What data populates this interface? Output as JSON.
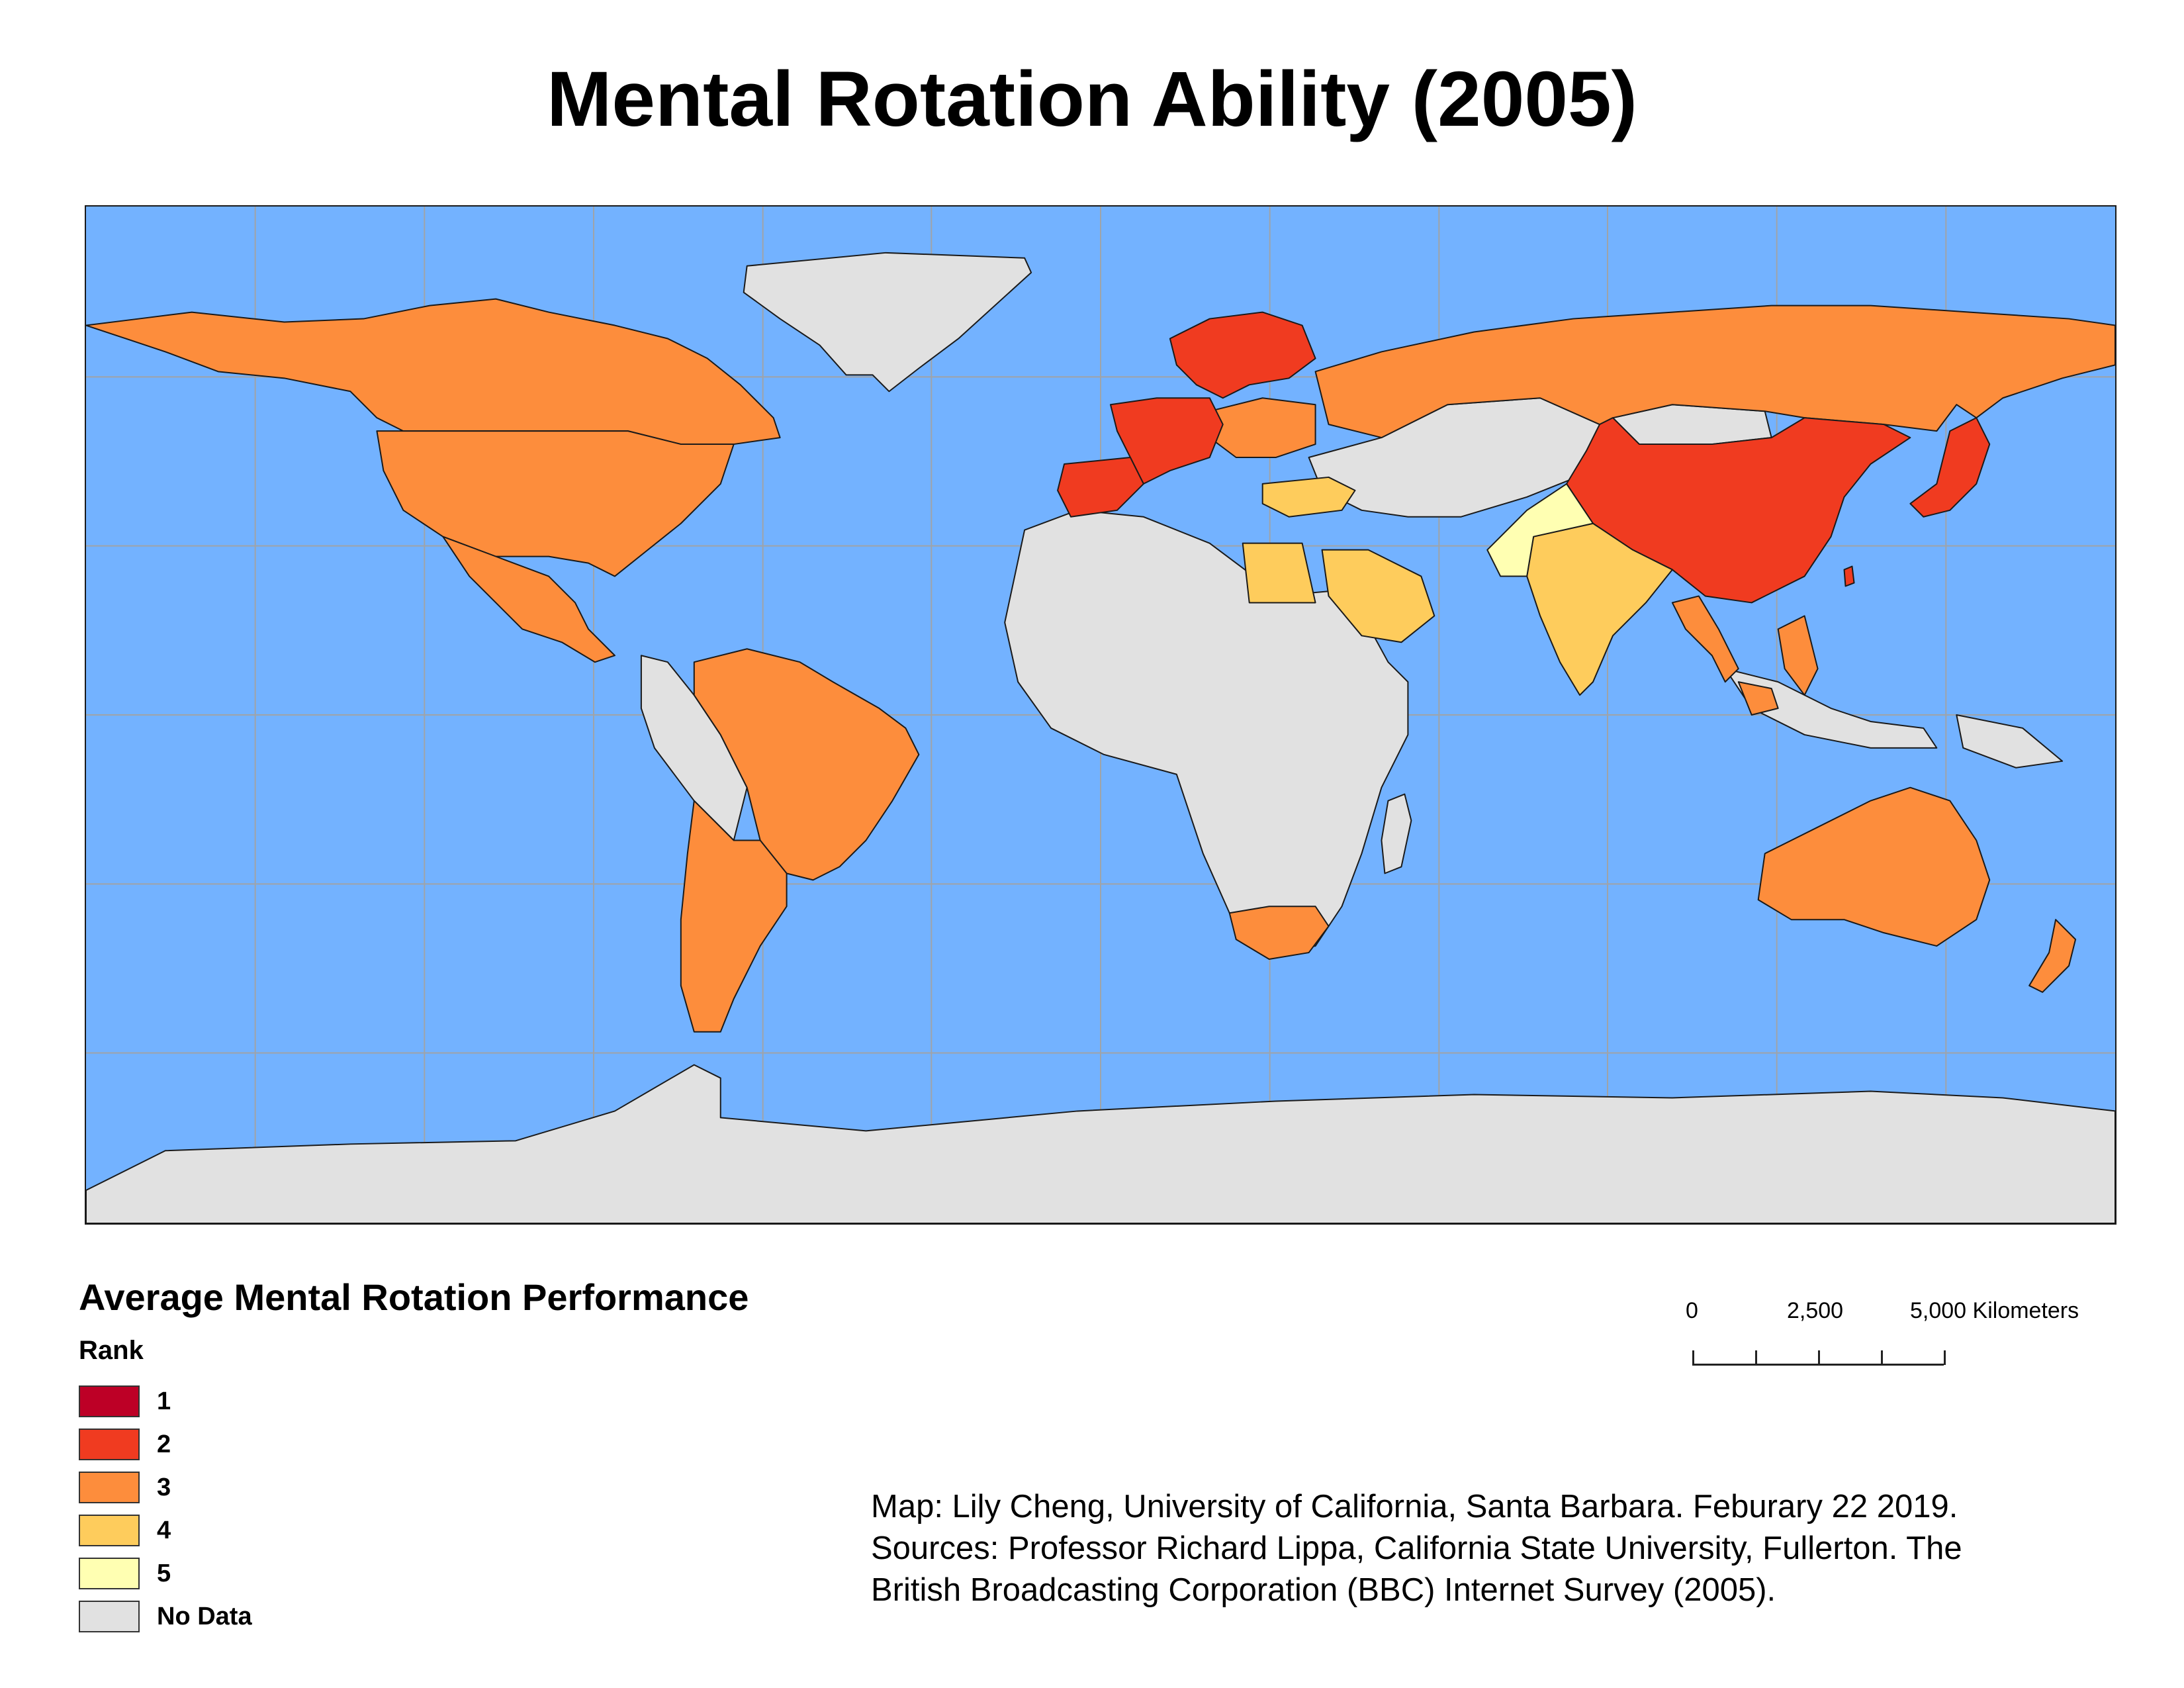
{
  "title": "Mental Rotation Ability (2005)",
  "legend": {
    "title": "Average Mental Rotation Performance",
    "subtitle": "Rank",
    "items": [
      {
        "label": "1",
        "color": "#bd0026"
      },
      {
        "label": "2",
        "color": "#f03b20"
      },
      {
        "label": "3",
        "color": "#fd8d3c"
      },
      {
        "label": "4",
        "color": "#fecc5c"
      },
      {
        "label": "5",
        "color": "#ffffb2"
      },
      {
        "label": "No Data",
        "color": "#e1e1e1"
      }
    ]
  },
  "scale_bar": {
    "labels": [
      "0",
      "2,500",
      "5,000 Kilometers"
    ]
  },
  "credits": {
    "line1": "Map: Lily Cheng, University of California, Santa Barbara. Feburary 22 2019.",
    "line2": "Sources: Professor Richard Lippa, California State University, Fullerton. The",
    "line3": "British Broadcasting Corporation (BBC) Internet Survey (2005)."
  },
  "colors": {
    "ocean": "#73b2ff",
    "graticule": "#9fa3a8",
    "border": "#1a1a1a"
  }
}
